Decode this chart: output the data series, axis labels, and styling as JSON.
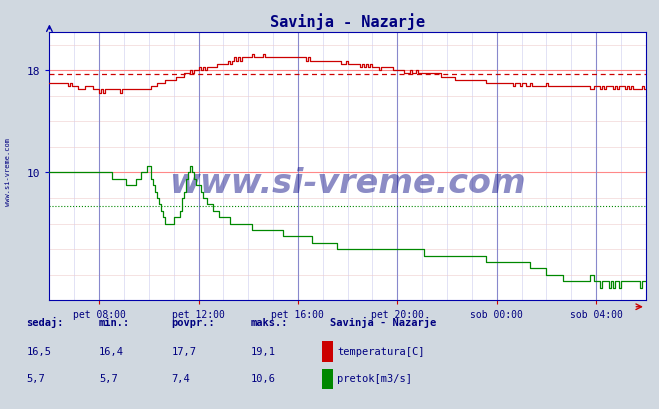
{
  "title": "Savinja - Nazarje",
  "title_color": "#000080",
  "bg_color": "#d0d8e0",
  "plot_bg_color": "#ffffff",
  "grid_color_minor": "#d8d8ff",
  "grid_color_major_h": "#ffb0b0",
  "grid_color_major_v": "#9999cc",
  "temp_color": "#cc0000",
  "flow_color": "#008800",
  "temp_avg": 17.7,
  "flow_avg": 7.4,
  "x_tick_labels": [
    "pet 08:00",
    "pet 12:00",
    "pet 16:00",
    "pet 20:00",
    "sob 00:00",
    "sob 04:00"
  ],
  "y_ticks": [
    10,
    18
  ],
  "watermark": "www.si-vreme.com",
  "sidebar_text": "www.si-vreme.com",
  "stat_headers": [
    "sedaj:",
    "min.:",
    "povpr.:",
    "maks.:",
    "Savinja - Nazarje"
  ],
  "temp_stats": [
    "16,5",
    "16,4",
    "17,7",
    "19,1"
  ],
  "flow_stats": [
    "5,7",
    "5,7",
    "7,4",
    "10,6"
  ],
  "temp_label": "temperatura[C]",
  "flow_label": "pretok[m3/s]",
  "y_min": 0,
  "y_max": 21,
  "x_min": 0,
  "x_max": 288
}
